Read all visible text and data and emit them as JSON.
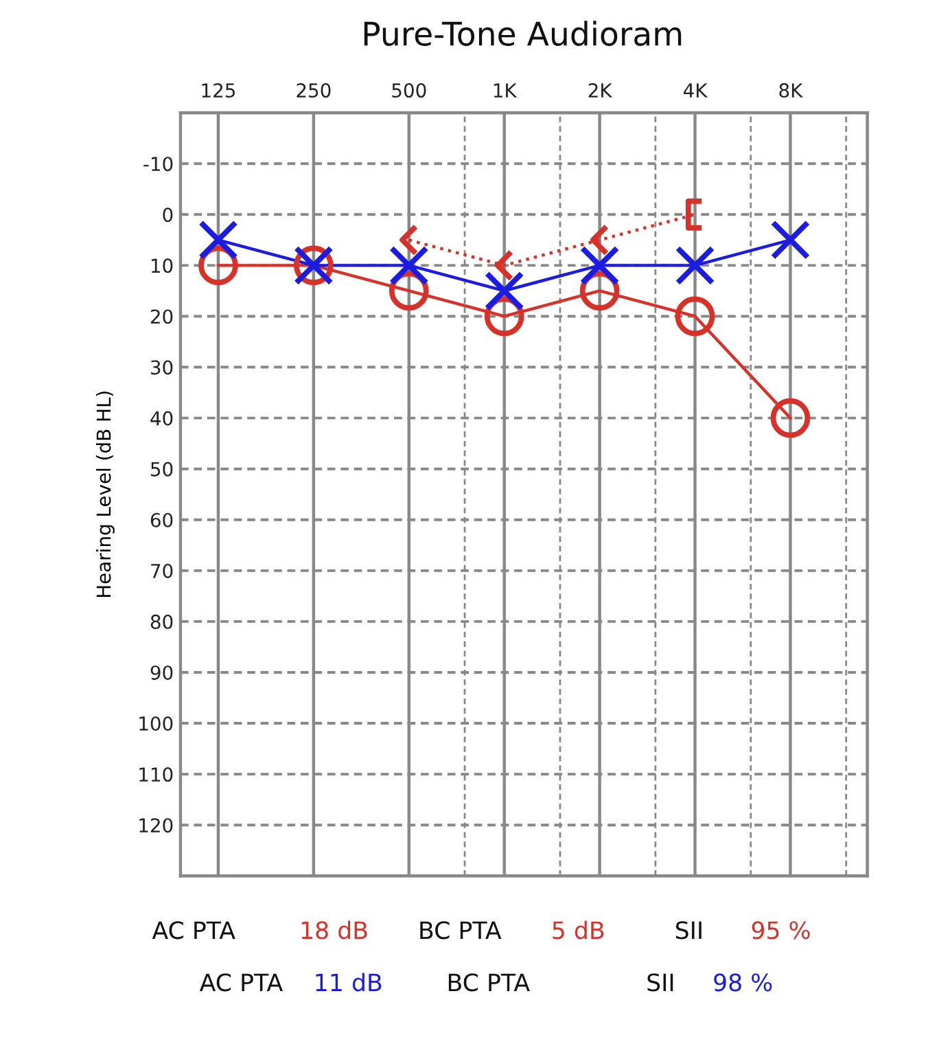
{
  "chart_data": {
    "type": "line",
    "title": "Pure-Tone Audioram",
    "ylabel": "Hearing Level (dB HL)",
    "x": [
      125,
      250,
      500,
      1000,
      2000,
      4000,
      8000
    ],
    "series": [
      {
        "color": "#d6322a",
        "values": [
          10,
          10,
          15,
          20,
          15,
          20,
          40
        ],
        "marker": "circle",
        "line_style": "solid"
      },
      {
        "color": "#1c1ce0",
        "values": [
          5,
          10,
          10,
          15,
          10,
          10,
          5
        ],
        "marker": "cross",
        "line_style": "solid"
      },
      {
        "color": "#d6322a",
        "values": [
          null,
          null,
          5,
          10,
          5,
          0,
          null
        ],
        "marker": [
          null,
          null,
          "triangle",
          "triangle",
          "triangle",
          "square",
          null
        ],
        "line_style": "dotted"
      }
    ],
    "log": "x",
    "xlim": [
      95,
      14000
    ],
    "xticks": [
      {
        "value": 125,
        "label": "125"
      },
      {
        "value": 250,
        "label": "250"
      },
      {
        "value": 500,
        "label": "500"
      },
      {
        "value": 750,
        "label": null
      },
      {
        "value": 1000,
        "label": "1K"
      },
      {
        "value": 1500,
        "label": null
      },
      {
        "value": 2000,
        "label": "2K"
      },
      {
        "value": 3000,
        "label": null
      },
      {
        "value": 4000,
        "label": "4K"
      },
      {
        "value": 6000,
        "label": null
      },
      {
        "value": 8000,
        "label": "8K"
      },
      {
        "value": 12000,
        "label": null
      }
    ],
    "ylim": [
      130,
      -20
    ],
    "yticks": [
      -10,
      0,
      10,
      20,
      30,
      40,
      50,
      60,
      70,
      80,
      90,
      100,
      110,
      120
    ],
    "grid": true,
    "annotations": [
      [
        "AC PTA",
        "18 dB",
        "BC PTA",
        "5 dB",
        "SII",
        "95 %"
      ],
      [
        "AC PTA",
        "11 dB",
        "BC PTA",
        null,
        "SII",
        "98 %"
      ]
    ]
  }
}
